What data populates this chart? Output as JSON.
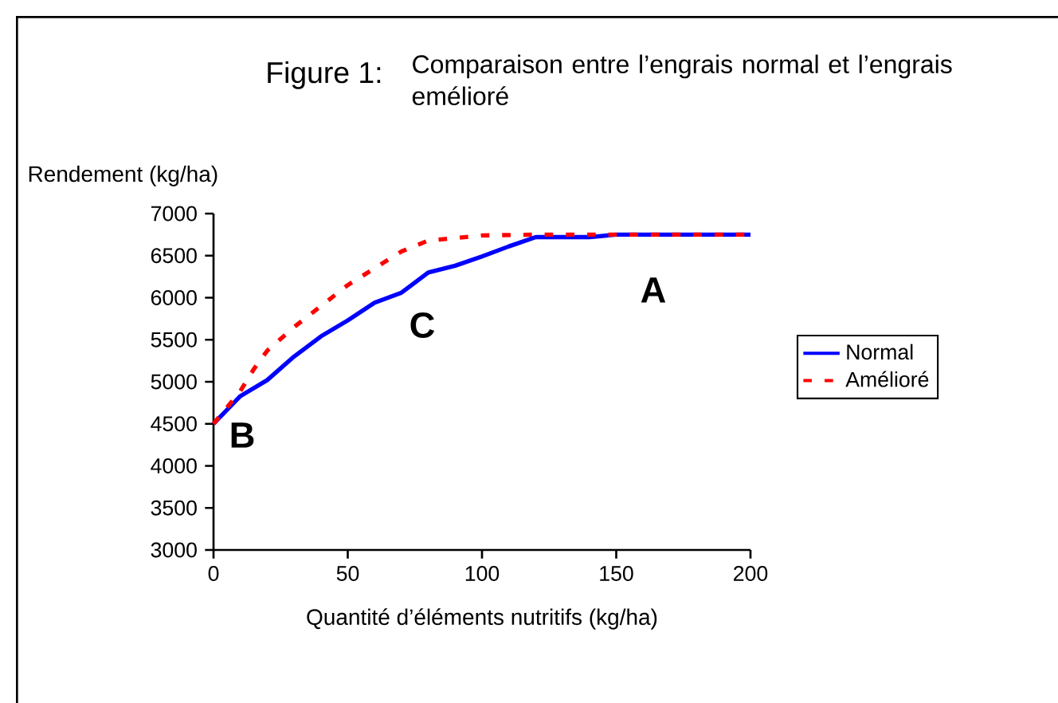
{
  "chart_data": {
    "type": "line",
    "title": "Figure 1:",
    "subtitle": "Comparaison entre l’engrais normal et l’engrais emélioré",
    "xlabel": "Quantité d’éléments nutritifs (kg/ha)",
    "ylabel": "Rendement (kg/ha)",
    "xlim": [
      0,
      200
    ],
    "xticks": [
      0,
      50,
      100,
      150,
      200
    ],
    "ylim": [
      3000,
      7000
    ],
    "yticks": [
      3000,
      3500,
      4000,
      4500,
      5000,
      5500,
      6000,
      6500,
      7000
    ],
    "legend": "right",
    "series": [
      {
        "name": "Normal",
        "color": "#0000ff",
        "line_style": "solid",
        "x": [
          0,
          10,
          20,
          30,
          40,
          50,
          60,
          70,
          80,
          90,
          100,
          110,
          120,
          140,
          150,
          200
        ],
        "values": [
          4500,
          4830,
          5020,
          5300,
          5540,
          5730,
          5940,
          6060,
          6300,
          6380,
          6490,
          6610,
          6720,
          6720,
          6750,
          6750
        ]
      },
      {
        "name": "Amélioré",
        "color": "#ff0000",
        "line_style": "dashed",
        "x": [
          0,
          10,
          15,
          20,
          30,
          40,
          50,
          60,
          70,
          80,
          100,
          120,
          200
        ],
        "values": [
          4500,
          4890,
          5150,
          5370,
          5650,
          5900,
          6150,
          6350,
          6550,
          6680,
          6740,
          6750,
          6750
        ]
      }
    ],
    "annotations": [
      "A",
      "B",
      "C"
    ]
  }
}
